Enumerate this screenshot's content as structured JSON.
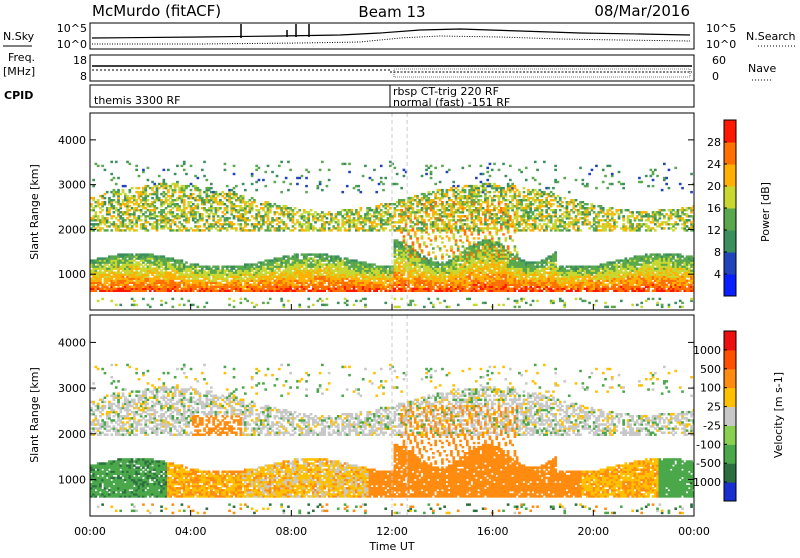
{
  "header": {
    "station": "McMurdo (fitACF)",
    "beam": "Beam 13",
    "date": "08/Mar/2016"
  },
  "panels": {
    "nsky_label": "N.Sky",
    "nsky_ticks_left": [
      "10^5",
      "10^0"
    ],
    "nsky_ticks_right": [
      "10^5",
      "10^0"
    ],
    "nsearch_label": "N.Search",
    "freq_label_top": "Freq.",
    "freq_label_unit": "[MHz]",
    "freq_ticks": [
      "18",
      "8"
    ],
    "nave_label": "Nave",
    "nave_ticks": [
      "60",
      "0"
    ],
    "cpid_label": "CPID",
    "cpid_entries": [
      {
        "text": "themis 3300 RF",
        "start_hour": 0.0
      },
      {
        "text": "rbsp CT-trig 220 RF",
        "start_hour": 12.0
      },
      {
        "text": "normal (fast) -151 RF",
        "start_hour": 12.0
      }
    ]
  },
  "chart_data": [
    {
      "type": "heatmap",
      "name": "power",
      "ylabel": "Slant Range [km]",
      "ylim": [
        200,
        4600
      ],
      "yticks": [
        1000,
        2000,
        3000,
        4000
      ],
      "x_range_hours": [
        0,
        24
      ],
      "colorbar_label": "Power [dB]",
      "colorbar_ticks": [
        "4",
        "8",
        "12",
        "16",
        "20",
        "24",
        "28"
      ],
      "colorbar_colors": [
        "#0a1fff",
        "#2244bb",
        "#3b8f5e",
        "#5aa84e",
        "#c8d830",
        "#ffb000",
        "#ff7000",
        "#ff1800"
      ]
    },
    {
      "type": "heatmap",
      "name": "velocity",
      "ylabel": "Slant Range [km]",
      "xlabel": "Time UT",
      "ylim": [
        200,
        4600
      ],
      "yticks": [
        1000,
        2000,
        3000,
        4000
      ],
      "x_range_hours": [
        0,
        24
      ],
      "xticks": [
        "00:00",
        "04:00",
        "08:00",
        "12:00",
        "16:00",
        "20:00",
        "00:00"
      ],
      "colorbar_label": "Velocity [m s-1]",
      "colorbar_ticks": [
        "1000",
        "500",
        "100",
        "25",
        "-25",
        "-100",
        "-500",
        "-1000"
      ],
      "colorbar_colors": [
        "#1a2fd0",
        "#2c6e3f",
        "#4aa84a",
        "#8ad050",
        "#c8c8c8",
        "#ffc000",
        "#ff8c10",
        "#ff5000",
        "#ee1010"
      ]
    }
  ]
}
